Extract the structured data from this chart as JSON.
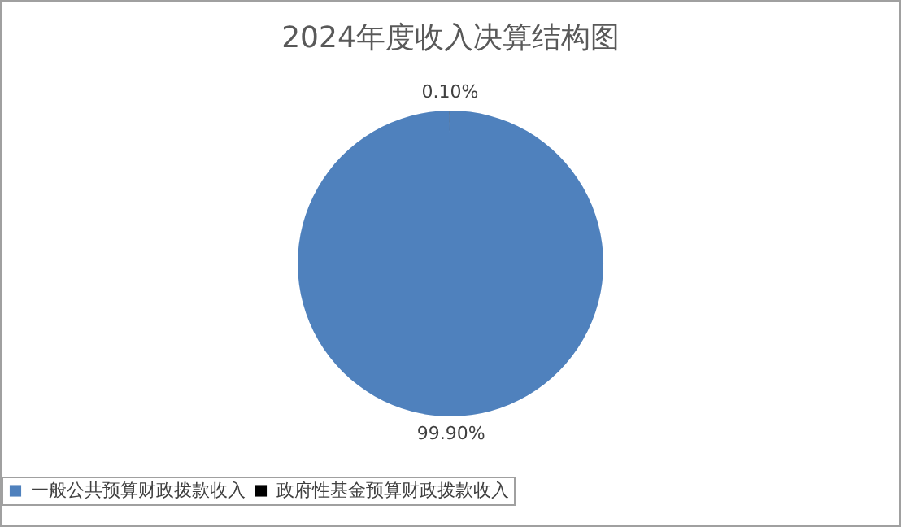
{
  "chart_data": {
    "type": "pie",
    "title": "2024年度收入决算结构图",
    "categories": [
      "一般公共预算财政拨款收入",
      "政府性基金预算财政拨款收入"
    ],
    "values": [
      99.9,
      0.1
    ],
    "colors": [
      "#4f81bd",
      "#000000"
    ],
    "value_labels": [
      "99.90%",
      "0.10%"
    ],
    "legend": "bottom"
  }
}
